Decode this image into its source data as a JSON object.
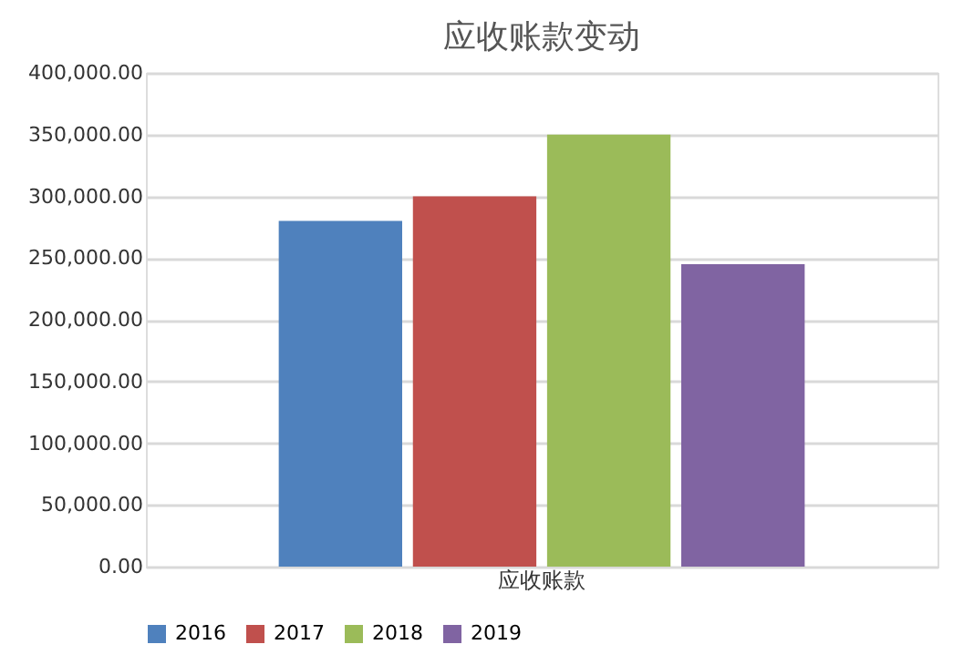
{
  "chart_data": {
    "type": "bar",
    "title": "应收账款变动",
    "categories": [
      "应收账款"
    ],
    "series": [
      {
        "name": "2016",
        "color": "#4f81bd",
        "values": [
          280000
        ]
      },
      {
        "name": "2017",
        "color": "#c0504d",
        "values": [
          300000
        ]
      },
      {
        "name": "2018",
        "color": "#9bbb59",
        "values": [
          350000
        ]
      },
      {
        "name": "2019",
        "color": "#8064a2",
        "values": [
          245000
        ]
      }
    ],
    "ylim": [
      0,
      400000
    ],
    "yticks": [
      {
        "value": 0,
        "label": "0.00"
      },
      {
        "value": 50000,
        "label": "50,000.00"
      },
      {
        "value": 100000,
        "label": "100,000.00"
      },
      {
        "value": 150000,
        "label": "150,000.00"
      },
      {
        "value": 200000,
        "label": "200,000.00"
      },
      {
        "value": 250000,
        "label": "250,000.00"
      },
      {
        "value": 300000,
        "label": "300,000.00"
      },
      {
        "value": 350000,
        "label": "350,000.00"
      },
      {
        "value": 400000,
        "label": "400,000.00"
      }
    ],
    "grid": "y",
    "legend": "bottom"
  }
}
